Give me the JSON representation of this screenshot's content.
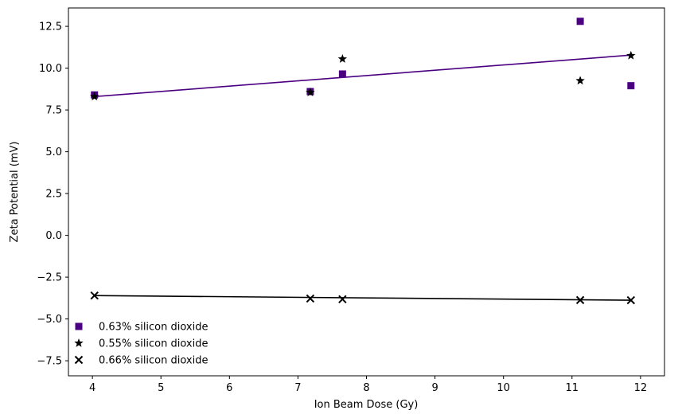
{
  "chart_data": {
    "type": "scatter",
    "title": "",
    "xlabel": "Ion Beam Dose (Gy)",
    "ylabel": "Zeta Potential (mV)",
    "xlim": [
      3.65,
      12.35
    ],
    "ylim": [
      -8.4,
      13.6
    ],
    "xticks": [
      4,
      5,
      6,
      7,
      8,
      9,
      10,
      11,
      12
    ],
    "yticks": [
      -7.5,
      -5.0,
      -2.5,
      0.0,
      2.5,
      5.0,
      7.5,
      10.0,
      12.5
    ],
    "xtick_labels": [
      "4",
      "5",
      "6",
      "7",
      "8",
      "9",
      "10",
      "11",
      "12"
    ],
    "ytick_labels": [
      "−7.5",
      "−5.0",
      "−2.5",
      "0.0",
      "2.5",
      "5.0",
      "7.5",
      "10.0",
      "12.5"
    ],
    "grid": false,
    "legend_position": "lower-left",
    "series": [
      {
        "name": "0.63% silicon dioxide",
        "marker": "square",
        "color": "#4b0082",
        "x": [
          4.03,
          7.18,
          7.65,
          11.12,
          11.86
        ],
        "y": [
          8.4,
          8.6,
          9.65,
          12.8,
          8.95
        ]
      },
      {
        "name": "0.55% silicon dioxide",
        "marker": "star",
        "color": "#000000",
        "x": [
          4.03,
          7.18,
          7.65,
          11.12,
          11.86
        ],
        "y": [
          8.3,
          8.55,
          10.55,
          9.25,
          10.75
        ]
      },
      {
        "name": "0.66% silicon dioxide",
        "marker": "x",
        "color": "#000000",
        "x": [
          4.03,
          7.18,
          7.65,
          11.12,
          11.86
        ],
        "y": [
          -3.6,
          -3.78,
          -3.82,
          -3.87,
          -3.88
        ]
      }
    ],
    "fit_lines": [
      {
        "color": "#4b0082",
        "x": [
          4.03,
          11.86
        ],
        "y": [
          8.3,
          10.78
        ]
      },
      {
        "color": "#000000",
        "x": [
          4.03,
          11.86
        ],
        "y": [
          -3.6,
          -3.88
        ]
      }
    ]
  }
}
